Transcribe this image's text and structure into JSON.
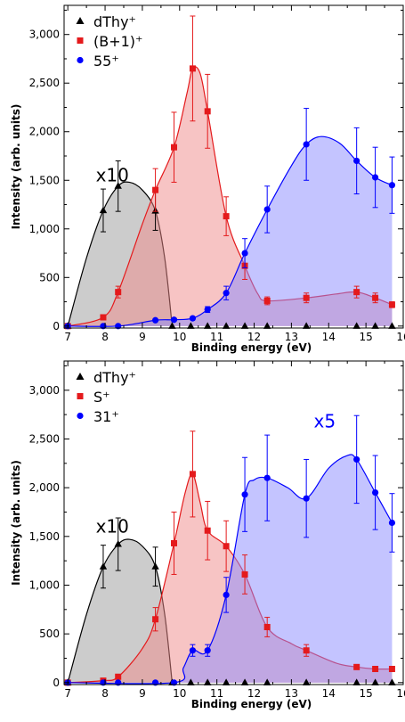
{
  "chart_data": [
    {
      "type": "area",
      "xlabel": "Binding energy (eV)",
      "ylabel": "Intensity (arb. units)",
      "xlim": [
        6.9,
        16
      ],
      "ylim": [
        -20,
        3300
      ],
      "x_ticks": [
        "7",
        "8",
        "9",
        "10",
        "11",
        "12",
        "13",
        "14",
        "15",
        "16"
      ],
      "y_ticks": [
        "0",
        "500",
        "1,000",
        "1,500",
        "2,000",
        "2,500",
        "3,000"
      ],
      "legend_placement": "top-left",
      "annotations": [
        {
          "text": "x10",
          "x": 7.75,
          "y": 1490,
          "color": "#000000"
        }
      ],
      "series": [
        {
          "name": "dThy⁺",
          "marker": "triangle",
          "color": "#000000",
          "fill": "#9a9a9a",
          "points": [
            [
              7.0,
              0
            ],
            [
              7.95,
              1190
            ],
            [
              8.35,
              1440
            ],
            [
              9.35,
              1185
            ],
            [
              9.8,
              0
            ],
            [
              10.3,
              0
            ],
            [
              10.75,
              0
            ],
            [
              11.25,
              0
            ],
            [
              11.75,
              0
            ],
            [
              12.35,
              0
            ],
            [
              13.4,
              0
            ],
            [
              14.75,
              0
            ],
            [
              15.25,
              0
            ],
            [
              15.7,
              0
            ]
          ],
          "errors": [
            0,
            220,
            260,
            200,
            0,
            0,
            0,
            0,
            0,
            0,
            0,
            0,
            0,
            0
          ],
          "curve": [
            [
              7.0,
              0
            ],
            [
              7.5,
              700
            ],
            [
              7.95,
              1190
            ],
            [
              8.35,
              1440
            ],
            [
              8.65,
              1480
            ],
            [
              9.0,
              1400
            ],
            [
              9.35,
              1185
            ],
            [
              9.6,
              700
            ],
            [
              9.8,
              0
            ]
          ]
        },
        {
          "name": "(B+1)⁺",
          "marker": "square",
          "color": "#e41a1c",
          "fill": "#f08a8a",
          "points": [
            [
              7.0,
              0
            ],
            [
              7.95,
              90
            ],
            [
              8.35,
              350
            ],
            [
              9.35,
              1400
            ],
            [
              9.85,
              1840
            ],
            [
              10.35,
              2650
            ],
            [
              10.75,
              2210
            ],
            [
              11.25,
              1130
            ],
            [
              11.75,
              620
            ],
            [
              12.35,
              260
            ],
            [
              13.4,
              290
            ],
            [
              14.75,
              350
            ],
            [
              15.25,
              290
            ],
            [
              15.7,
              220
            ]
          ],
          "errors": [
            0,
            20,
            60,
            220,
            360,
            540,
            380,
            200,
            140,
            40,
            50,
            60,
            50,
            30
          ],
          "curve": [
            [
              7.0,
              0
            ],
            [
              7.95,
              90
            ],
            [
              8.35,
              350
            ],
            [
              9.0,
              1050
            ],
            [
              9.35,
              1400
            ],
            [
              9.85,
              1840
            ],
            [
              10.2,
              2400
            ],
            [
              10.35,
              2650
            ],
            [
              10.55,
              2600
            ],
            [
              10.75,
              2210
            ],
            [
              11.25,
              1130
            ],
            [
              11.75,
              620
            ],
            [
              12.1,
              330
            ],
            [
              12.35,
              260
            ],
            [
              13.4,
              290
            ],
            [
              14.2,
              330
            ],
            [
              14.75,
              350
            ],
            [
              15.25,
              290
            ],
            [
              15.7,
              220
            ]
          ]
        },
        {
          "name": "55⁺",
          "marker": "circle",
          "color": "#0000ff",
          "fill": "#8a8aff",
          "points": [
            [
              7.0,
              0
            ],
            [
              7.95,
              0
            ],
            [
              8.35,
              0
            ],
            [
              9.35,
              60
            ],
            [
              9.85,
              65
            ],
            [
              10.35,
              80
            ],
            [
              10.75,
              170
            ],
            [
              11.25,
              340
            ],
            [
              11.75,
              750
            ],
            [
              12.35,
              1200
            ],
            [
              13.4,
              1870
            ],
            [
              14.75,
              1700
            ],
            [
              15.25,
              1530
            ],
            [
              15.7,
              1450
            ]
          ],
          "errors": [
            0,
            0,
            0,
            10,
            10,
            15,
            30,
            70,
            150,
            240,
            370,
            340,
            310,
            290
          ],
          "curve": [
            [
              7.0,
              0
            ],
            [
              8.35,
              0
            ],
            [
              9.35,
              60
            ],
            [
              9.85,
              65
            ],
            [
              10.35,
              80
            ],
            [
              10.75,
              170
            ],
            [
              11.25,
              340
            ],
            [
              11.75,
              750
            ],
            [
              12.35,
              1200
            ],
            [
              13.0,
              1650
            ],
            [
              13.4,
              1870
            ],
            [
              13.8,
              1950
            ],
            [
              14.3,
              1880
            ],
            [
              14.75,
              1700
            ],
            [
              15.25,
              1530
            ],
            [
              15.7,
              1450
            ]
          ]
        }
      ]
    },
    {
      "type": "area",
      "xlabel": "Binding energy (eV)",
      "ylabel": "Intensity (arb. units)",
      "xlim": [
        6.9,
        16
      ],
      "ylim": [
        -20,
        3300
      ],
      "x_ticks": [
        "7",
        "8",
        "9",
        "10",
        "11",
        "12",
        "13",
        "14",
        "15",
        "16"
      ],
      "y_ticks": [
        "0",
        "500",
        "1,000",
        "1,500",
        "2,000",
        "2,500",
        "3,000"
      ],
      "legend_placement": "top-left",
      "annotations": [
        {
          "text": "x10",
          "x": 7.75,
          "y": 1540,
          "color": "#000000"
        },
        {
          "text": "x5",
          "x": 13.6,
          "y": 2620,
          "color": "#0000ff"
        }
      ],
      "series": [
        {
          "name": "dThy⁺",
          "marker": "triangle",
          "color": "#000000",
          "fill": "#9a9a9a",
          "points": [
            [
              7.0,
              0
            ],
            [
              7.95,
              1190
            ],
            [
              8.35,
              1420
            ],
            [
              9.35,
              1190
            ],
            [
              9.8,
              0
            ],
            [
              10.3,
              0
            ],
            [
              10.75,
              0
            ],
            [
              11.25,
              0
            ],
            [
              11.75,
              0
            ],
            [
              12.35,
              0
            ],
            [
              13.4,
              0
            ],
            [
              14.75,
              0
            ],
            [
              15.25,
              0
            ],
            [
              15.7,
              0
            ]
          ],
          "errors": [
            0,
            220,
            270,
            200,
            0,
            0,
            0,
            0,
            0,
            0,
            0,
            0,
            0,
            0
          ],
          "curve": [
            [
              7.0,
              0
            ],
            [
              7.5,
              700
            ],
            [
              7.95,
              1190
            ],
            [
              8.35,
              1420
            ],
            [
              8.65,
              1470
            ],
            [
              9.0,
              1400
            ],
            [
              9.35,
              1190
            ],
            [
              9.6,
              700
            ],
            [
              9.8,
              0
            ]
          ]
        },
        {
          "name": "S⁺",
          "marker": "square",
          "color": "#e41a1c",
          "fill": "#f08a8a",
          "points": [
            [
              7.0,
              0
            ],
            [
              7.95,
              20
            ],
            [
              8.35,
              60
            ],
            [
              9.35,
              650
            ],
            [
              9.85,
              1430
            ],
            [
              10.35,
              2140
            ],
            [
              10.75,
              1560
            ],
            [
              11.25,
              1400
            ],
            [
              11.75,
              1110
            ],
            [
              12.35,
              570
            ],
            [
              13.4,
              330
            ],
            [
              14.75,
              160
            ],
            [
              15.25,
              140
            ],
            [
              15.7,
              140
            ]
          ],
          "errors": [
            0,
            10,
            20,
            120,
            320,
            440,
            300,
            260,
            200,
            100,
            60,
            25,
            20,
            20
          ],
          "curve": [
            [
              7.0,
              0
            ],
            [
              7.95,
              20
            ],
            [
              8.35,
              60
            ],
            [
              9.0,
              350
            ],
            [
              9.35,
              650
            ],
            [
              9.85,
              1430
            ],
            [
              10.15,
              1950
            ],
            [
              10.35,
              2140
            ],
            [
              10.55,
              1850
            ],
            [
              10.75,
              1560
            ],
            [
              11.25,
              1400
            ],
            [
              11.75,
              1110
            ],
            [
              12.35,
              570
            ],
            [
              13.0,
              400
            ],
            [
              13.4,
              330
            ],
            [
              14.2,
              200
            ],
            [
              14.75,
              160
            ],
            [
              15.25,
              140
            ],
            [
              15.7,
              140
            ]
          ]
        },
        {
          "name": "31⁺",
          "marker": "circle",
          "color": "#0000ff",
          "fill": "#8a8aff",
          "points": [
            [
              7.0,
              0
            ],
            [
              7.95,
              0
            ],
            [
              8.35,
              0
            ],
            [
              9.35,
              0
            ],
            [
              9.85,
              0
            ],
            [
              10.35,
              330
            ],
            [
              10.75,
              330
            ],
            [
              11.25,
              900
            ],
            [
              11.75,
              1930
            ],
            [
              12.35,
              2100
            ],
            [
              13.4,
              1890
            ],
            [
              14.75,
              2290
            ],
            [
              15.25,
              1950
            ],
            [
              15.7,
              1640
            ]
          ],
          "errors": [
            0,
            0,
            0,
            0,
            0,
            60,
            60,
            180,
            380,
            440,
            400,
            450,
            380,
            300
          ],
          "curve": [
            [
              7.0,
              0
            ],
            [
              9.85,
              0
            ],
            [
              10.1,
              150
            ],
            [
              10.35,
              330
            ],
            [
              10.75,
              330
            ],
            [
              11.25,
              900
            ],
            [
              11.75,
              1930
            ],
            [
              12.0,
              2080
            ],
            [
              12.35,
              2100
            ],
            [
              12.9,
              2000
            ],
            [
              13.4,
              1890
            ],
            [
              14.0,
              2200
            ],
            [
              14.5,
              2330
            ],
            [
              14.75,
              2290
            ],
            [
              15.25,
              1950
            ],
            [
              15.7,
              1640
            ]
          ]
        }
      ]
    }
  ]
}
